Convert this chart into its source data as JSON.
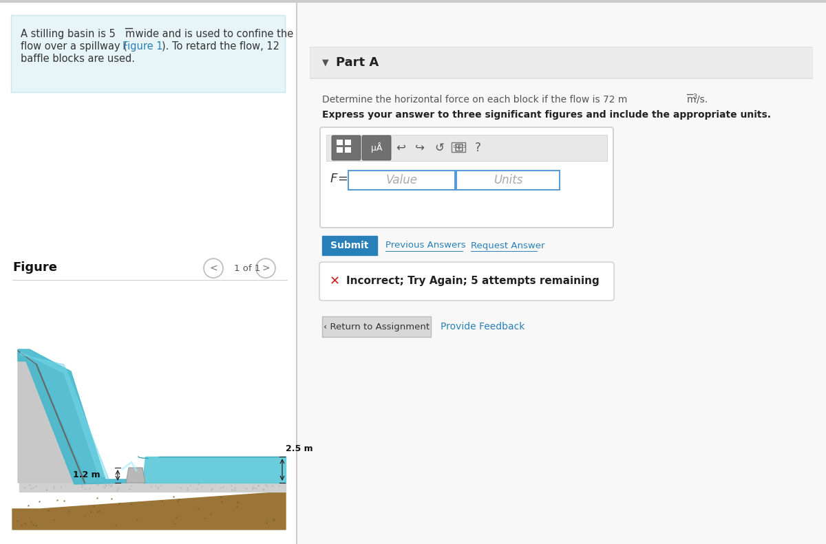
{
  "bg_color": "#f0f0f0",
  "left_panel_bg": "#ffffff",
  "right_panel_bg": "#ffffff",
  "divider_color": "#cccccc",
  "problem_box_bg": "#e8f5f8",
  "problem_box_border": "#c8e8f0",
  "problem_line1": "A stilling basin is 5 ",
  "problem_line1b": "m",
  "problem_line1c": " wide and is used to confine the",
  "problem_line2": "flow over a spillway (",
  "problem_line2b": "Figure 1",
  "problem_line2c": "). To retard the flow, 12",
  "problem_line3": "baffle blocks are used.",
  "figure_label": "Figure",
  "figure_nav": "1 of 1",
  "part_a_label": "Part A",
  "question_pre": "Determine the horizontal force on each block if the flow is 72 m",
  "question_post": "/s.",
  "bold_instruction": "Express your answer to three significant figures and include the appropriate units.",
  "f_label": "F",
  "equals": " =",
  "value_placeholder": "Value",
  "units_placeholder": "Units",
  "submit_btn_text": "Submit",
  "submit_btn_color": "#2980b9",
  "prev_ans_text": "Previous Answers",
  "req_ans_text": "Request Answer",
  "incorrect_text": "Incorrect; Try Again; 5 attempts remaining",
  "return_btn_text": "‹ Return to Assignment",
  "return_btn_bg": "#d8d8d8",
  "feedback_text": "Provide Feedback",
  "link_color": "#2980b9",
  "top_border_color": "#cccccc",
  "dim_25": "2.5 m",
  "dim_12": "1.2 m",
  "text_color": "#444444",
  "figure1_link_color": "#2980b9"
}
